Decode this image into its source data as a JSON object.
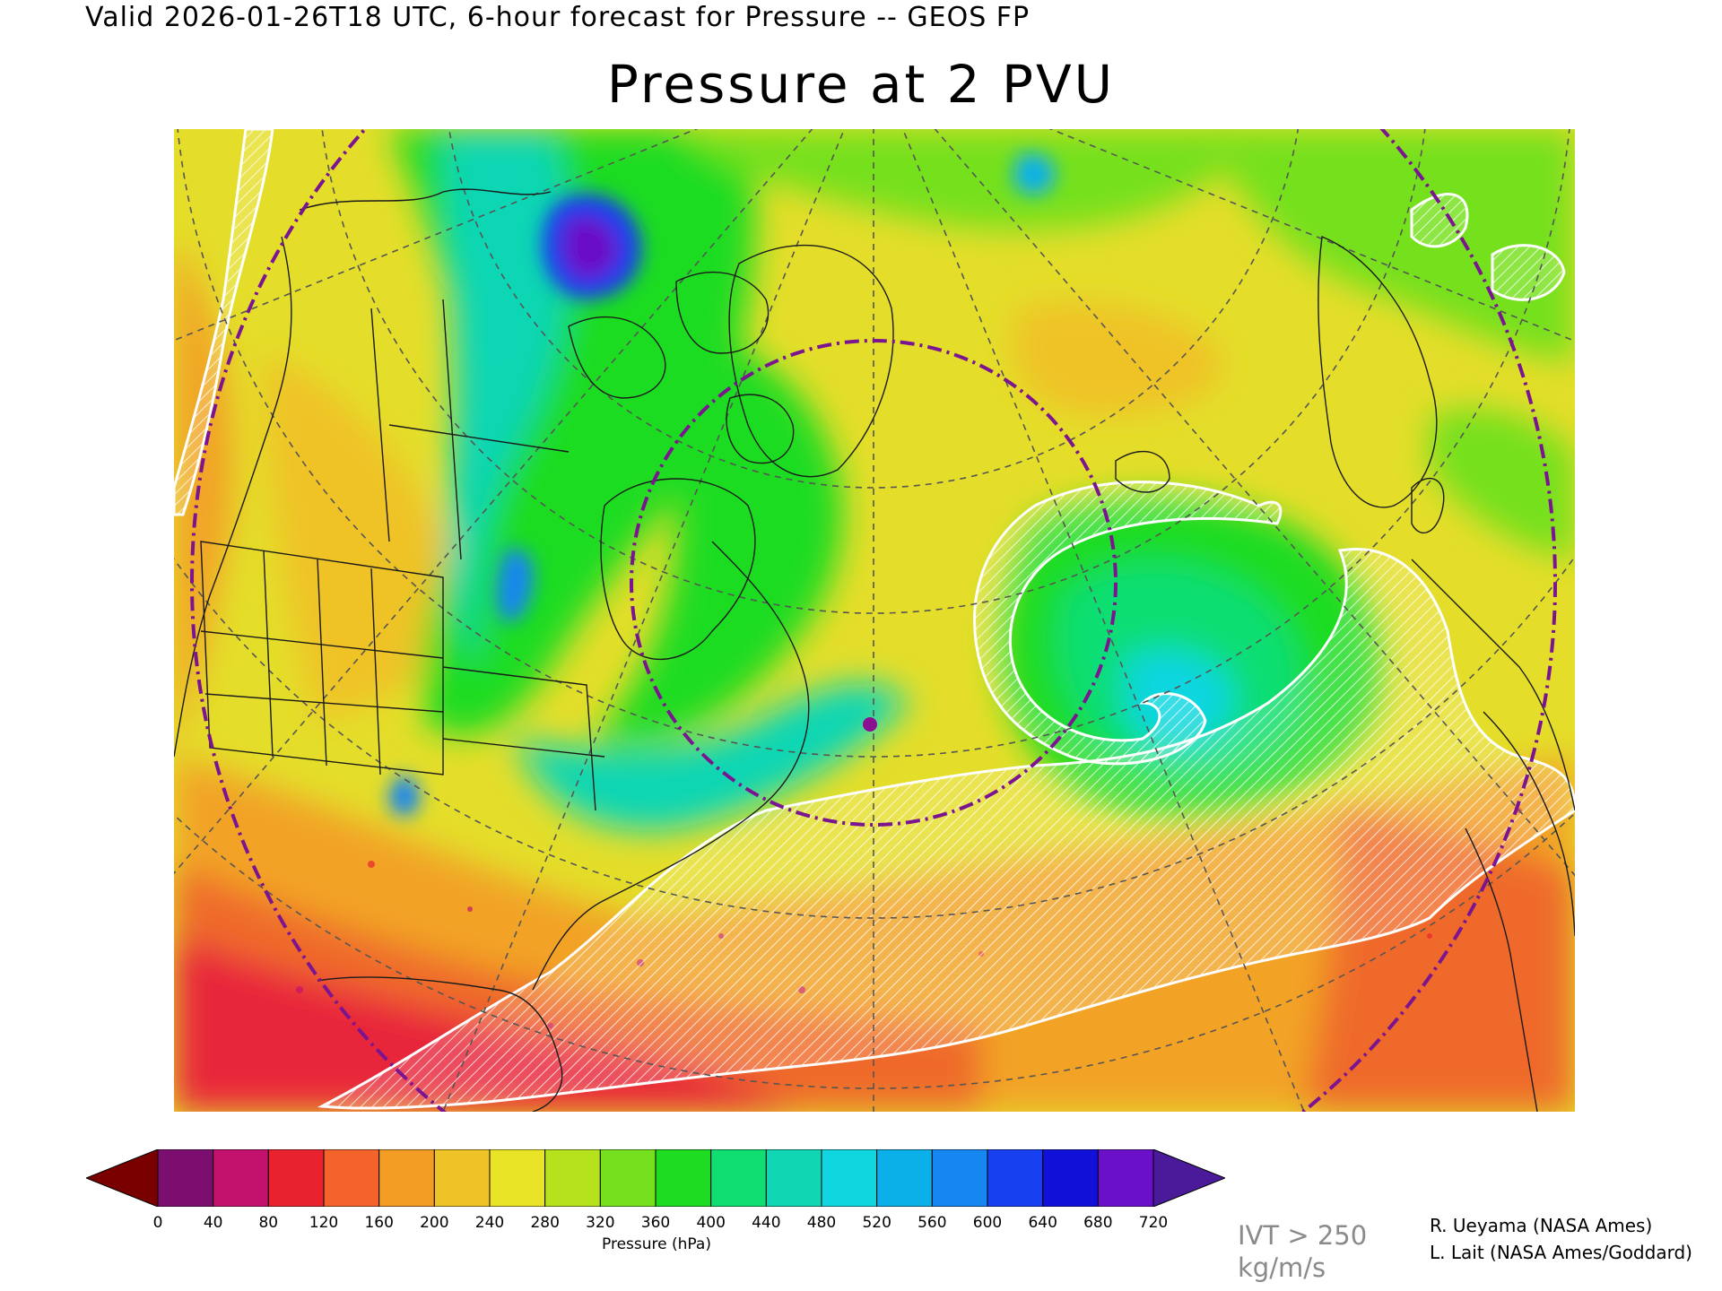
{
  "header": {
    "valid_line": "Valid 2026-01-26T18 UTC, 6-hour forecast for Pressure -- GEOS FP"
  },
  "map": {
    "title": "Pressure at 2 PVU",
    "colors": {
      "outline": "#1a1a1a",
      "graticule": "#555555",
      "circle": "#7a1490",
      "marker": "#8a1092",
      "ivt_contour": "#ffffff"
    }
  },
  "colorbar": {
    "ticks": [
      "0",
      "40",
      "80",
      "120",
      "160",
      "200",
      "240",
      "280",
      "320",
      "360",
      "400",
      "440",
      "480",
      "520",
      "560",
      "600",
      "640",
      "680",
      "720"
    ],
    "low_overflow_color": "#7a0000",
    "high_overflow_color": "#4a1a9a",
    "colors": [
      "#7b0e6e",
      "#c3126e",
      "#e8232e",
      "#f4632a",
      "#f39c24",
      "#efc328",
      "#e9e426",
      "#b5e21c",
      "#74e01e",
      "#1edc22",
      "#10de72",
      "#10d6b4",
      "#10d6e0",
      "#0cb0e8",
      "#1686f0",
      "#1640f0",
      "#1010d8",
      "#6a10c8"
    ],
    "unit_label": "Pressure (hPa)"
  },
  "ivt_label": "IVT > 250 kg/m/s",
  "credits": [
    "R. Ueyama (NASA Ames)",
    "L. Lait (NASA Ames/Goddard)"
  ]
}
